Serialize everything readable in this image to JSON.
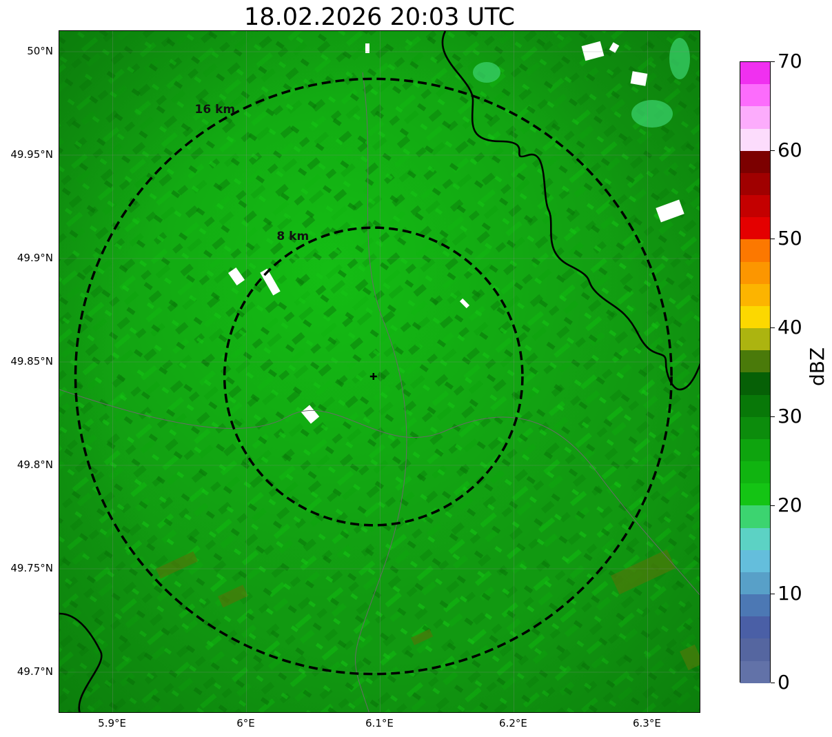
{
  "title": "18.02.2026 20:03 UTC",
  "map": {
    "lon_range": [
      5.86,
      6.34
    ],
    "lat_range": [
      49.68,
      50.01
    ],
    "center": {
      "lon": 6.095,
      "lat": 49.843
    },
    "lat_ticks": [
      {
        "value": 50.0,
        "label": "50°N"
      },
      {
        "value": 49.95,
        "label": "49.95°N"
      },
      {
        "value": 49.9,
        "label": "49.9°N"
      },
      {
        "value": 49.85,
        "label": "49.85°N"
      },
      {
        "value": 49.8,
        "label": "49.8°N"
      },
      {
        "value": 49.75,
        "label": "49.75°N"
      },
      {
        "value": 49.7,
        "label": "49.7°N"
      }
    ],
    "lon_ticks": [
      {
        "value": 5.9,
        "label": "5.9°E"
      },
      {
        "value": 6.0,
        "label": "6°E"
      },
      {
        "value": 6.1,
        "label": "6.1°E"
      },
      {
        "value": 6.2,
        "label": "6.2°E"
      },
      {
        "value": 6.3,
        "label": "6.3°E"
      }
    ],
    "range_rings": [
      {
        "km": 8,
        "label": "8 km"
      },
      {
        "km": 16,
        "label": "16 km"
      }
    ],
    "base_color": "#119911",
    "ring_color": "#000000"
  },
  "colorbar": {
    "label": "dBZ",
    "min": 0,
    "max": 70,
    "tick_values": [
      0,
      10,
      20,
      30,
      40,
      50,
      60,
      70
    ],
    "tick_labels": [
      "0",
      "10",
      "20",
      "30",
      "40",
      "50",
      "60",
      "70"
    ],
    "colors": [
      "#6272a8",
      "#5566a0",
      "#4a5fa6",
      "#4c78b4",
      "#58a0c8",
      "#64bedc",
      "#5cd2c4",
      "#3cd470",
      "#14c414",
      "#10b410",
      "#0ea40e",
      "#0c8c0c",
      "#087808",
      "#066006",
      "#4a7a0a",
      "#acb410",
      "#fcd800",
      "#fcb400",
      "#fc9600",
      "#fc7800",
      "#e40000",
      "#c40000",
      "#a00000",
      "#7c0000",
      "#fcdcfc",
      "#fcacfc",
      "#fc6cfc",
      "#f030f0"
    ]
  }
}
